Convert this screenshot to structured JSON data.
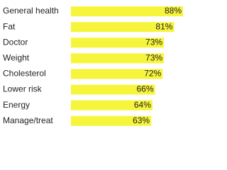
{
  "chart_data": {
    "type": "hbar",
    "color": "#f7f43c",
    "categories": [
      "General health",
      "Fat",
      "Doctor",
      "Weight",
      "Cholesterol",
      "Lower risk",
      "Energy",
      "Manage/treat"
    ],
    "values": [
      88,
      81,
      73,
      73,
      72,
      66,
      64,
      63
    ],
    "value_labels": [
      "88%",
      "81%",
      "73%",
      "73%",
      "72%",
      "66%",
      "64%",
      "63%"
    ]
  }
}
